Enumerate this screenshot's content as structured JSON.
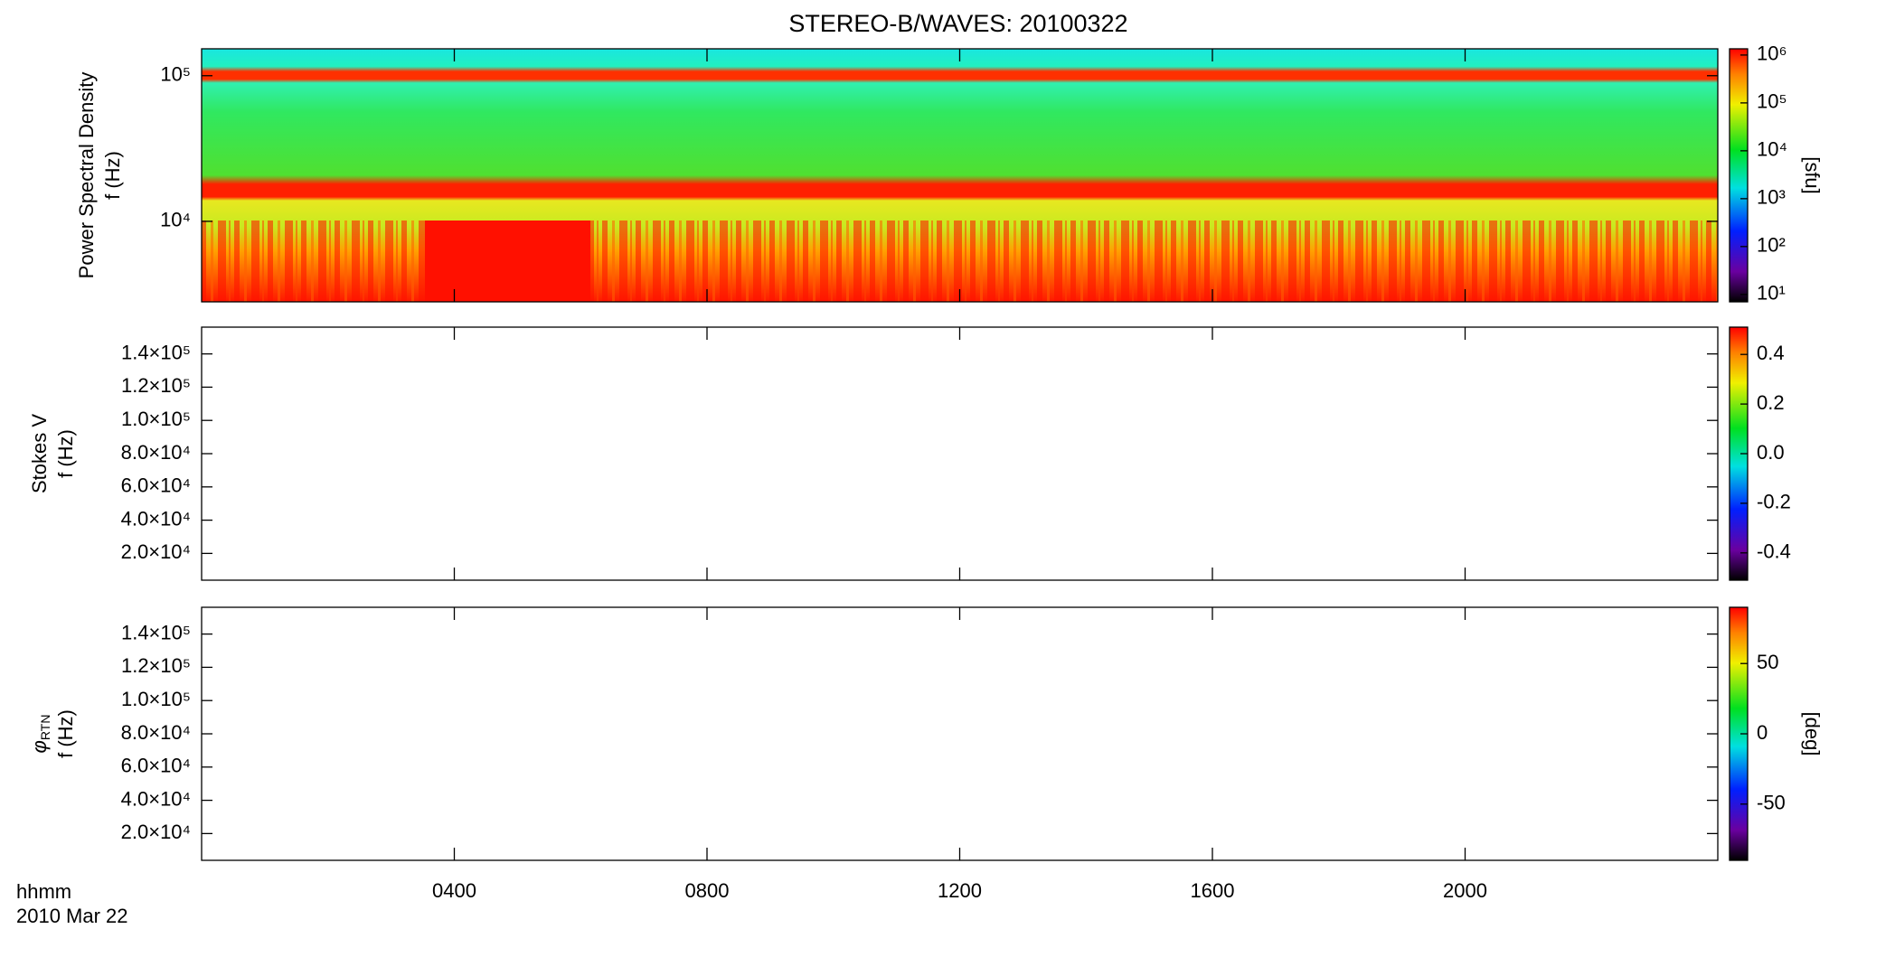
{
  "chart_data": [
    {
      "type": "heatmap",
      "title": "STEREO-B/WAVES: 20100322",
      "ylabel": [
        "Power Spectral Density",
        "f (Hz)"
      ],
      "xlim": [
        0,
        1440
      ],
      "ylim": [
        2800,
        153000
      ],
      "log": true,
      "yticks": [
        {
          "value": 10000,
          "label": "10⁴"
        },
        {
          "value": 100000,
          "label": "10⁵"
        }
      ],
      "colorbar": {
        "lim": [
          7,
          1350000
        ],
        "log": true,
        "label": "[sfu]",
        "ticks": [
          {
            "value": 10,
            "label": "10¹"
          },
          {
            "value": 100,
            "label": "10²"
          },
          {
            "value": 1000,
            "label": "10³"
          },
          {
            "value": 10000,
            "label": "10⁴"
          },
          {
            "value": 100000,
            "label": "10⁵"
          },
          {
            "value": 1000000,
            "label": "10⁶"
          }
        ]
      }
    },
    {
      "type": "heatmap",
      "ylabel": [
        "Stokes V",
        "f (Hz)"
      ],
      "xlim": [
        0,
        1440
      ],
      "ylim": [
        3900,
        156100
      ],
      "log": false,
      "yticks": [
        {
          "value": 20000,
          "label": "2.0×10⁴"
        },
        {
          "value": 40000,
          "label": "4.0×10⁴"
        },
        {
          "value": 60000,
          "label": "6.0×10⁴"
        },
        {
          "value": 80000,
          "label": "8.0×10⁴"
        },
        {
          "value": 100000,
          "label": "1.0×10⁵"
        },
        {
          "value": 120000,
          "label": "1.2×10⁵"
        },
        {
          "value": 140000,
          "label": "1.4×10⁵"
        }
      ],
      "colorbar": {
        "lim": [
          -0.51,
          0.51
        ],
        "log": false,
        "ticks": [
          -0.4,
          -0.2,
          {
            "value": 0,
            "label": "0.0"
          },
          0.2,
          0.4
        ]
      }
    },
    {
      "type": "heatmap",
      "ylabel": [
        {
          "text": "φ",
          "sub": "RTN"
        },
        "f (Hz)"
      ],
      "xlim": [
        0,
        1440
      ],
      "ylim": [
        3900,
        156100
      ],
      "log": false,
      "yticks": [
        {
          "value": 20000,
          "label": "2.0×10⁴"
        },
        {
          "value": 40000,
          "label": "4.0×10⁴"
        },
        {
          "value": 60000,
          "label": "6.0×10⁴"
        },
        {
          "value": 80000,
          "label": "8.0×10⁴"
        },
        {
          "value": 100000,
          "label": "1.0×10⁵"
        },
        {
          "value": 120000,
          "label": "1.2×10⁵"
        },
        {
          "value": 140000,
          "label": "1.4×10⁵"
        }
      ],
      "colorbar": {
        "lim": [
          -90,
          90
        ],
        "log": false,
        "label": "[deg]",
        "ticks": [
          -50,
          0,
          50
        ]
      },
      "xlabel": "hhmm",
      "date": "2010 Mar 22",
      "xticks": [
        {
          "value": 240,
          "label": "0400"
        },
        {
          "value": 480,
          "label": "0800"
        },
        {
          "value": 720,
          "label": "1200"
        },
        {
          "value": 960,
          "label": "1600"
        },
        {
          "value": 1200,
          "label": "2000"
        }
      ]
    }
  ]
}
